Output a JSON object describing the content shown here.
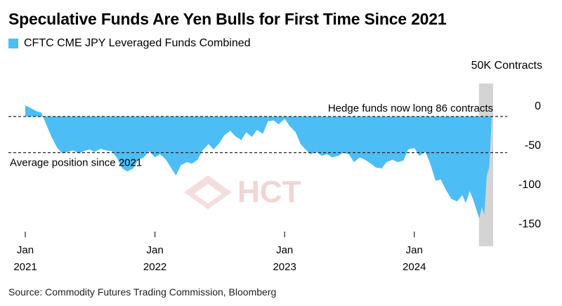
{
  "title": "Speculative Funds Are Yen Bulls for First Time Since 2021",
  "source": "Source: Commodity Futures Trading Commission, Bloomberg",
  "watermark": {
    "logo_text": "HCT"
  },
  "colors": {
    "area": "#4dbdf5",
    "highlight_band": "#d4d4d4",
    "axis_text": "#000000",
    "watermark": "#e6b5b5"
  },
  "chart_data": {
    "type": "area",
    "units_label": "50K Contracts",
    "legend": [
      {
        "name": "CFTC CME JPY Leveraged Funds Combined",
        "color": "#4dbdf5"
      }
    ],
    "ylim": [
      -165,
      17
    ],
    "y_ticks": [
      {
        "value": 0,
        "label": "0"
      },
      {
        "value": -50,
        "label": "-50"
      },
      {
        "value": -100,
        "label": "-100"
      },
      {
        "value": -150,
        "label": "-150"
      }
    ],
    "x_ticks": [
      {
        "date": "2021-01-01",
        "month": "Jan",
        "year": "2021"
      },
      {
        "date": "2022-01-01",
        "month": "Jan",
        "year": "2022"
      },
      {
        "date": "2023-01-01",
        "month": "Jan",
        "year": "2023"
      },
      {
        "date": "2024-01-01",
        "month": "Jan",
        "year": "2024"
      }
    ],
    "xlim": [
      "2021-01-01",
      "2024-08-10"
    ],
    "highlight": {
      "start": "2024-07-01",
      "end": "2024-08-10"
    },
    "reference_lines": [
      {
        "value": 0,
        "label": "Hedge funds now long 86 contracts"
      },
      {
        "value": -46,
        "label": "Average position since 2021"
      }
    ],
    "series": [
      {
        "name": "CFTC CME JPY Leveraged Funds Combined",
        "points": [
          [
            "2021-01-01",
            14
          ],
          [
            "2021-01-15",
            11
          ],
          [
            "2021-02-01",
            7
          ],
          [
            "2021-02-15",
            5
          ],
          [
            "2021-03-01",
            -10
          ],
          [
            "2021-03-15",
            -25
          ],
          [
            "2021-04-01",
            -40
          ],
          [
            "2021-04-15",
            -47
          ],
          [
            "2021-05-01",
            -45
          ],
          [
            "2021-05-15",
            -43
          ],
          [
            "2021-06-01",
            -47
          ],
          [
            "2021-06-15",
            -44
          ],
          [
            "2021-07-01",
            -42
          ],
          [
            "2021-07-15",
            -45
          ],
          [
            "2021-08-01",
            -41
          ],
          [
            "2021-08-15",
            -43
          ],
          [
            "2021-09-01",
            -44
          ],
          [
            "2021-09-15",
            -52
          ],
          [
            "2021-10-01",
            -66
          ],
          [
            "2021-10-15",
            -70
          ],
          [
            "2021-11-01",
            -66
          ],
          [
            "2021-11-15",
            -55
          ],
          [
            "2021-12-01",
            -52
          ],
          [
            "2021-12-15",
            -44
          ],
          [
            "2022-01-01",
            -52
          ],
          [
            "2022-01-15",
            -48
          ],
          [
            "2022-02-01",
            -55
          ],
          [
            "2022-02-15",
            -65
          ],
          [
            "2022-03-01",
            -75
          ],
          [
            "2022-03-15",
            -62
          ],
          [
            "2022-04-01",
            -58
          ],
          [
            "2022-04-15",
            -60
          ],
          [
            "2022-05-01",
            -55
          ],
          [
            "2022-05-15",
            -43
          ],
          [
            "2022-06-01",
            -35
          ],
          [
            "2022-06-15",
            -42
          ],
          [
            "2022-07-01",
            -34
          ],
          [
            "2022-07-15",
            -24
          ],
          [
            "2022-08-01",
            -18
          ],
          [
            "2022-08-15",
            -25
          ],
          [
            "2022-09-01",
            -30
          ],
          [
            "2022-09-15",
            -20
          ],
          [
            "2022-10-01",
            -26
          ],
          [
            "2022-10-15",
            -17
          ],
          [
            "2022-11-01",
            -22
          ],
          [
            "2022-11-15",
            -6
          ],
          [
            "2022-12-01",
            -5
          ],
          [
            "2022-12-15",
            -10
          ],
          [
            "2023-01-01",
            -3
          ],
          [
            "2023-01-15",
            -12
          ],
          [
            "2023-02-01",
            -20
          ],
          [
            "2023-02-15",
            -35
          ],
          [
            "2023-03-01",
            -42
          ],
          [
            "2023-03-15",
            -48
          ],
          [
            "2023-04-01",
            -45
          ],
          [
            "2023-04-15",
            -50
          ],
          [
            "2023-05-01",
            -48
          ],
          [
            "2023-05-15",
            -52
          ],
          [
            "2023-06-01",
            -50
          ],
          [
            "2023-06-15",
            -46
          ],
          [
            "2023-07-01",
            -48
          ],
          [
            "2023-07-15",
            -58
          ],
          [
            "2023-08-01",
            -52
          ],
          [
            "2023-08-15",
            -55
          ],
          [
            "2023-09-01",
            -60
          ],
          [
            "2023-09-15",
            -65
          ],
          [
            "2023-10-01",
            -66
          ],
          [
            "2023-10-15",
            -58
          ],
          [
            "2023-11-01",
            -55
          ],
          [
            "2023-11-15",
            -58
          ],
          [
            "2023-12-01",
            -56
          ],
          [
            "2023-12-15",
            -42
          ],
          [
            "2024-01-01",
            -40
          ],
          [
            "2024-01-15",
            -50
          ],
          [
            "2024-02-01",
            -45
          ],
          [
            "2024-02-15",
            -60
          ],
          [
            "2024-03-01",
            -82
          ],
          [
            "2024-03-15",
            -80
          ],
          [
            "2024-04-01",
            -95
          ],
          [
            "2024-04-15",
            -105
          ],
          [
            "2024-05-01",
            -108
          ],
          [
            "2024-05-15",
            -100
          ],
          [
            "2024-05-25",
            -110
          ],
          [
            "2024-06-05",
            -95
          ],
          [
            "2024-06-15",
            -106
          ],
          [
            "2024-06-25",
            -120
          ],
          [
            "2024-07-02",
            -130
          ],
          [
            "2024-07-09",
            -115
          ],
          [
            "2024-07-16",
            -125
          ],
          [
            "2024-07-23",
            -75
          ],
          [
            "2024-07-30",
            -65
          ],
          [
            "2024-08-06",
            0
          ]
        ]
      }
    ]
  }
}
